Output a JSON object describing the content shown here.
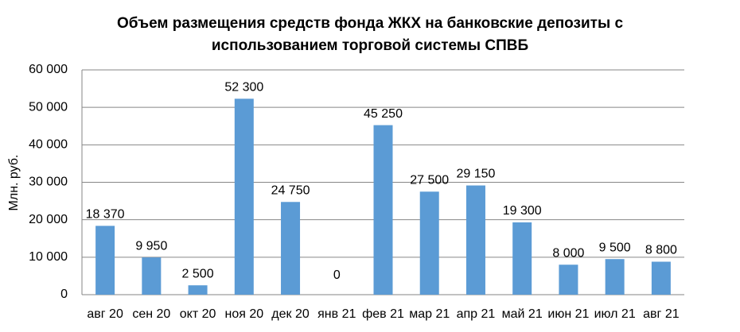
{
  "chart_data": {
    "type": "bar",
    "title": "Объем размещения средств фонда ЖКХ на банковские депозиты с использованием торговой системы СПВБ",
    "y_label": "Млн. руб.",
    "categories": [
      "авг 20",
      "сен 20",
      "окт 20",
      "ноя 20",
      "дек 20",
      "янв 21",
      "фев 21",
      "мар 21",
      "апр 21",
      "май 21",
      "июн 21",
      "июл 21",
      "авг 21"
    ],
    "values": [
      18370,
      9950,
      2500,
      52300,
      24750,
      0,
      45250,
      27500,
      29150,
      19300,
      8000,
      9500,
      8800
    ],
    "value_labels": [
      "18 370",
      "9 950",
      "2 500",
      "52 300",
      "24 750",
      "0",
      "45 250",
      "27 500",
      "29 150",
      "19 300",
      "8 000",
      "9 500",
      "8 800"
    ],
    "color": "#5b9bd5",
    "ylim": [
      0,
      60000
    ],
    "yticks": [
      0,
      {
        "value": 10000,
        "label": "10 000"
      },
      {
        "value": 20000,
        "label": "20 000"
      },
      {
        "value": 30000,
        "label": "30 000"
      },
      {
        "value": 40000,
        "label": "40 000"
      },
      {
        "value": 50000,
        "label": "50 000"
      },
      {
        "value": 60000,
        "label": "60 000"
      }
    ],
    "grid": true
  }
}
